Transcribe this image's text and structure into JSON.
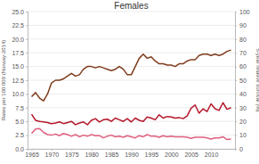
{
  "chart_data": {
    "type": "line",
    "title": "Females",
    "y_label": "Rates per 100 000 (Norway-2014)",
    "y2_label": "5-year relative survival (%)",
    "x": [
      1965,
      1966,
      1967,
      1968,
      1969,
      1970,
      1971,
      1972,
      1973,
      1974,
      1975,
      1976,
      1977,
      1978,
      1979,
      1980,
      1981,
      1982,
      1983,
      1984,
      1985,
      1986,
      1987,
      1988,
      1989,
      1990,
      1991,
      1992,
      1993,
      1994,
      1995,
      1996,
      1997,
      1998,
      1999,
      2000,
      2001,
      2002,
      2003,
      2004,
      2005,
      2006,
      2007,
      2008,
      2009,
      2010,
      2011,
      2012,
      2013,
      2014,
      2015
    ],
    "xlim": [
      1964,
      2016
    ],
    "xticks": [
      1965,
      1970,
      1975,
      1980,
      1985,
      1990,
      1995,
      2000,
      2005,
      2010
    ],
    "ylim": [
      0,
      25
    ],
    "yticks": [
      {
        "value": 0,
        "label": "0.0"
      },
      2.5,
      {
        "value": 5,
        "label": "5.0"
      },
      7.5,
      {
        "value": 10,
        "label": "10.0"
      },
      12.5,
      {
        "value": 15,
        "label": "15.0"
      },
      17.5,
      {
        "value": 20,
        "label": "20.0"
      },
      22.5,
      {
        "value": 25,
        "label": "25.0"
      }
    ],
    "y2lim": [
      0,
      100
    ],
    "y2ticks": [
      0,
      10,
      20,
      30,
      40,
      50,
      60,
      70,
      80,
      90,
      100
    ],
    "grid": true,
    "series": [
      {
        "color": "#7f3c1c",
        "axis": "y2",
        "values": [
          38,
          41,
          37,
          35,
          40,
          48,
          50,
          50,
          51,
          53,
          55,
          53,
          54,
          58,
          60,
          60,
          59,
          60,
          59,
          58,
          57,
          58,
          60,
          58,
          54,
          54,
          60,
          66,
          69,
          66,
          67,
          64,
          62,
          62,
          61,
          61,
          60,
          62,
          62,
          64,
          65,
          65,
          68,
          69,
          69,
          68,
          69,
          68,
          69,
          71,
          72
        ]
      },
      {
        "color": "#b5182b",
        "values": [
          6.3,
          5.2,
          5.0,
          4.9,
          4.8,
          4.6,
          4.7,
          4.9,
          4.6,
          4.8,
          5.0,
          4.4,
          4.7,
          4.9,
          4.4,
          5.2,
          5.5,
          4.9,
          5.3,
          5.4,
          5.0,
          5.6,
          5.3,
          5.0,
          5.5,
          4.9,
          5.6,
          5.2,
          5.0,
          5.8,
          5.6,
          5.3,
          6.2,
          5.6,
          5.9,
          5.8,
          5.6,
          5.7,
          5.5,
          6.0,
          7.4,
          8.0,
          6.5,
          7.3,
          6.8,
          8.2,
          7.3,
          7.0,
          8.4,
          7.2,
          7.5
        ]
      },
      {
        "color": "#e0607e",
        "values": [
          2.8,
          3.6,
          3.7,
          3.0,
          2.6,
          2.5,
          2.7,
          2.4,
          2.8,
          2.6,
          2.3,
          2.6,
          2.2,
          2.5,
          2.3,
          2.6,
          2.4,
          2.4,
          2.0,
          2.3,
          2.5,
          2.2,
          2.3,
          2.1,
          2.4,
          2.2,
          2.0,
          2.4,
          2.2,
          2.6,
          2.3,
          2.3,
          2.1,
          2.4,
          2.2,
          2.3,
          2.2,
          2.2,
          2.2,
          2.1,
          1.9,
          2.1,
          2.1,
          2.1,
          2.0,
          1.8,
          2.0,
          2.0,
          2.2,
          1.7,
          1.8
        ]
      }
    ]
  }
}
